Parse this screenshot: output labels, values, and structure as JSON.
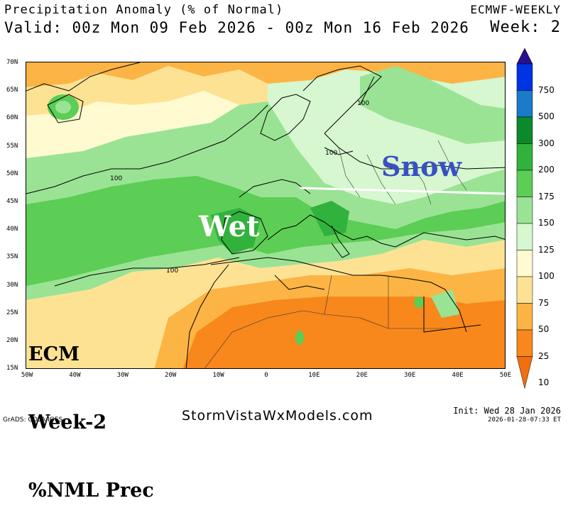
{
  "header": {
    "title": "Precipitation Anomaly (% of Normal)",
    "valid": "Valid: 00z Mon 09 Feb 2026 - 00z Mon 16 Feb 2026",
    "model": "ECMWF-WEEKLY",
    "week": "Week: 2"
  },
  "map": {
    "lat_labels": [
      "70N",
      "65N",
      "60N",
      "55N",
      "50N",
      "45N",
      "40N",
      "35N",
      "30N",
      "25N",
      "20N",
      "15N"
    ],
    "lon_labels": [
      "50W",
      "40W",
      "30W",
      "20W",
      "10W",
      "0",
      "10E",
      "20E",
      "30E",
      "40E",
      "50E"
    ],
    "contour_labels": [
      "100",
      "100",
      "100",
      "100"
    ]
  },
  "annotations": {
    "wet": "Wet",
    "snow": "Snow",
    "ecm_line1": "ECM",
    "ecm_line2": "Week-2",
    "ecm_line3": "%NML Prec"
  },
  "colorbar": {
    "levels": [
      "750",
      "500",
      "300",
      "200",
      "175",
      "150",
      "125",
      "100",
      "75",
      "50",
      "25",
      "10"
    ],
    "colors": [
      "#2b0f8f",
      "#0032e6",
      "#1a7bc9",
      "#0a8a2a",
      "#31b23c",
      "#5ccd55",
      "#9ae394",
      "#d6f7cf",
      "#fffad0",
      "#fee294",
      "#fcb444",
      "#f8871c",
      "#f36e0f"
    ]
  },
  "footer": {
    "site": "StormVistaWxModels.com",
    "grads": "GrADS: COLA/IGES",
    "init": "Init: Wed 28 Jan 2026",
    "stamp": "2026-01-28-07:33 ET"
  }
}
